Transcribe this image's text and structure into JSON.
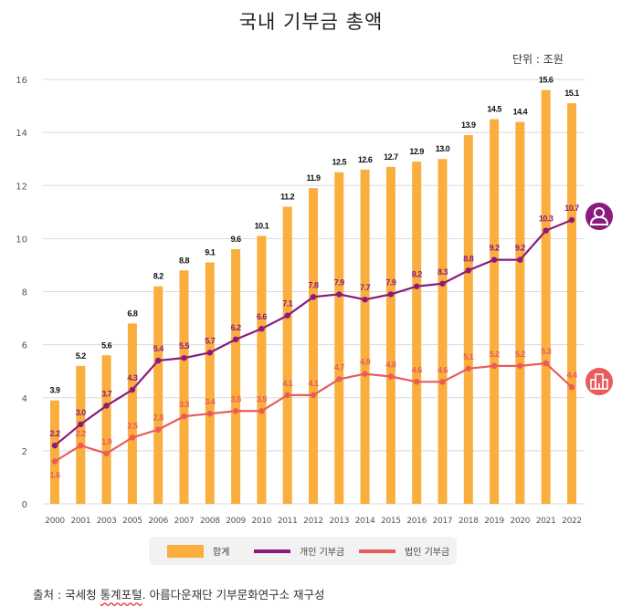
{
  "title": "국내 기부금 총액",
  "unit_label": "단위 : 조원",
  "source": {
    "prefix": "출처 : 국세청 ",
    "underlined": "통계포털",
    "suffix": ".  아름다운재단 기부문화연구소 재구성"
  },
  "colors": {
    "total": "#F9AE3D",
    "individual": "#8B1A7E",
    "corporate": "#E85C5C",
    "grid": "#D9D9D9",
    "axis_text": "#555555"
  },
  "icons": {
    "individual": "person-icon",
    "corporate": "building-icon"
  },
  "chart_data": {
    "type": "bar",
    "title": "국내 기부금 총액",
    "xlabel": "",
    "ylabel": "조원",
    "ylim": [
      0,
      16
    ],
    "yticks": [
      0,
      2,
      4,
      6,
      8,
      10,
      12,
      14,
      16
    ],
    "grid": true,
    "legend_position": "bottom",
    "categories": [
      "2000",
      "2001",
      "2003",
      "2005",
      "2006",
      "2007",
      "2008",
      "2009",
      "2010",
      "2011",
      "2012",
      "2013",
      "2014",
      "2015",
      "2016",
      "2017",
      "2018",
      "2019",
      "2020",
      "2021",
      "2022"
    ],
    "series": [
      {
        "name": "합계",
        "type": "bar",
        "values": [
          3.9,
          5.2,
          5.6,
          6.8,
          8.2,
          8.8,
          9.1,
          9.6,
          10.1,
          11.2,
          11.9,
          12.5,
          12.6,
          12.7,
          12.9,
          13.0,
          13.9,
          14.5,
          14.4,
          15.6,
          15.1
        ],
        "labels": [
          "3.9",
          "5.2",
          "5.6",
          "6.8",
          "8.2",
          "8.8",
          "9.1",
          "9.6",
          "10.1",
          "11.2",
          "11.9",
          "12.5",
          "12.6",
          "12.7",
          "12.9",
          "13.0",
          "13.9",
          "14.5",
          "14.4",
          "15.6",
          "15.1"
        ]
      },
      {
        "name": "개인 기부금",
        "type": "line",
        "values": [
          2.2,
          3.0,
          3.7,
          4.3,
          5.4,
          5.5,
          5.7,
          6.2,
          6.6,
          7.1,
          7.8,
          7.9,
          7.7,
          7.9,
          8.2,
          8.3,
          8.8,
          9.2,
          9.2,
          10.3,
          10.7
        ],
        "labels": [
          "2.2",
          "3.0",
          "3.7",
          "4.3",
          "5.4",
          "5.5",
          "5.7",
          "6.2",
          "6.6",
          "7.1",
          "7.8",
          "7.9",
          "7.7",
          "7.9",
          "8.2",
          "8.3",
          "8.8",
          "9.2",
          "9.2",
          "10.3",
          "10.7"
        ]
      },
      {
        "name": "법인 기부금",
        "type": "line",
        "values": [
          1.6,
          2.2,
          1.9,
          2.5,
          2.8,
          3.3,
          3.4,
          3.5,
          3.5,
          4.1,
          4.1,
          4.7,
          4.9,
          4.8,
          4.6,
          4.6,
          5.1,
          5.2,
          5.2,
          5.3,
          4.4
        ],
        "labels": [
          "1.6",
          "2.2",
          "1.9",
          "2.5",
          "2.8",
          "3.3",
          "3.4",
          "3.5",
          "3.5",
          "4.1",
          "4.1",
          "4.7",
          "4.9",
          "4.8",
          "4.6",
          "4.6",
          "5.1",
          "5.2",
          "5.2",
          "5.3",
          "4.4"
        ]
      }
    ]
  },
  "legend": [
    {
      "label": "합계"
    },
    {
      "label": "개인 기부금"
    },
    {
      "label": "법인 기부금"
    }
  ]
}
